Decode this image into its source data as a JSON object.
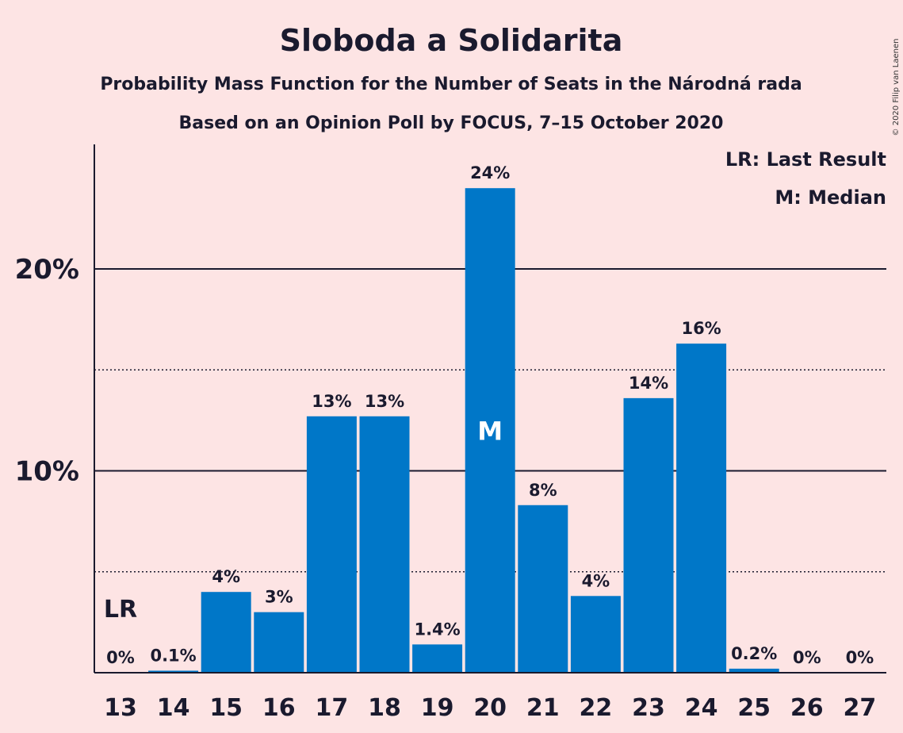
{
  "title": "Sloboda a Solidarita",
  "subtitle1": "Probability Mass Function for the Number of Seats in the Národná rada",
  "subtitle2": "Based on an Opinion Poll by FOCUS, 7–15 October 2020",
  "copyright": "© 2020 Filip van Laenen",
  "legend": {
    "last_result": "LR: Last Result",
    "median": "M: Median"
  },
  "colors": {
    "background": "#fde4e4",
    "bar": "#0077c8",
    "text": "#1a1a2e"
  },
  "chart_data": {
    "type": "bar",
    "categories": [
      "13",
      "14",
      "15",
      "16",
      "17",
      "18",
      "19",
      "20",
      "21",
      "22",
      "23",
      "24",
      "25",
      "26",
      "27"
    ],
    "values": [
      0,
      0.1,
      4,
      3,
      12.7,
      12.7,
      1.4,
      24,
      8.3,
      3.8,
      13.6,
      16.3,
      0.2,
      0,
      0
    ],
    "data_labels": [
      "0%",
      "0.1%",
      "4%",
      "3%",
      "13%",
      "13%",
      "1.4%",
      "24%",
      "8%",
      "4%",
      "14%",
      "16%",
      "0.2%",
      "0%",
      "0%"
    ],
    "y_ticks": [
      {
        "value": 10,
        "label": "10%"
      },
      {
        "value": 20,
        "label": "20%"
      }
    ],
    "y_minor_ticks": [
      5,
      15
    ],
    "ylim": [
      0,
      26
    ],
    "last_result": {
      "category": "13",
      "label": "LR"
    },
    "median": {
      "category": "20",
      "label": "M"
    },
    "xlabel": "",
    "ylabel": ""
  }
}
